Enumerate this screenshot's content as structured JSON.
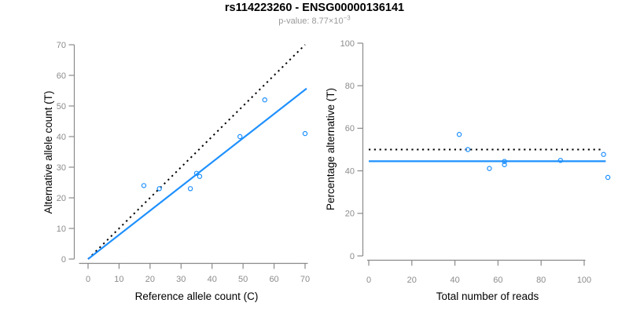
{
  "title": "rs114223260 - ENSG00000136141",
  "subtitle": {
    "base": "p-value: 8.77×10",
    "exponent": "−3"
  },
  "colors": {
    "accent_blue": "#1e90ff",
    "reference_line_black": "#000000",
    "axis_gray": "#8a8a8a",
    "tick_label_gray": "#8c8c8c",
    "axis_title_black": "#000000",
    "subtitle_gray": "#9a9a9a",
    "background": "#ffffff"
  },
  "chart_data": [
    {
      "type": "scatter",
      "panel": "left",
      "xlabel": "Reference allele count (C)",
      "ylabel": "Alternative allele count (T)",
      "xlim": [
        0,
        70
      ],
      "ylim": [
        0,
        70
      ],
      "xticks": [
        0,
        10,
        20,
        30,
        40,
        50,
        60,
        70
      ],
      "yticks": [
        0,
        10,
        20,
        30,
        40,
        50,
        60,
        70
      ],
      "grid": false,
      "legend": null,
      "points": [
        [
          18,
          24
        ],
        [
          23,
          23
        ],
        [
          33,
          23
        ],
        [
          35,
          28
        ],
        [
          36,
          27
        ],
        [
          49,
          40
        ],
        [
          57,
          52
        ],
        [
          70,
          41
        ]
      ],
      "lines": [
        {
          "name": "identity-line",
          "style": "dotted",
          "color": "#000000",
          "from": [
            0,
            0
          ],
          "to": [
            70,
            70
          ]
        },
        {
          "name": "fit-line",
          "style": "solid",
          "color": "#1e90ff",
          "from": [
            0,
            0
          ],
          "to": [
            70.5,
            55.7
          ]
        }
      ]
    },
    {
      "type": "scatter",
      "panel": "right",
      "xlabel": "Total number of reads",
      "ylabel": "Percentage alternative (T)",
      "xlim": [
        0,
        100
      ],
      "ylim": [
        0,
        100
      ],
      "xticks": [
        0,
        20,
        40,
        60,
        80,
        100
      ],
      "yticks": [
        0,
        20,
        40,
        60,
        80,
        100
      ],
      "grid": false,
      "legend": null,
      "points": [
        [
          42,
          57.1
        ],
        [
          46,
          50.0
        ],
        [
          56,
          41.1
        ],
        [
          63,
          44.4
        ],
        [
          63,
          42.9
        ],
        [
          89,
          44.9
        ],
        [
          109,
          47.7
        ],
        [
          111,
          36.9
        ]
      ],
      "lines": [
        {
          "name": "fifty-percent-line",
          "style": "dotted",
          "color": "#000000",
          "from": [
            0,
            50
          ],
          "to": [
            108.5,
            50
          ]
        },
        {
          "name": "mean-percentage-line",
          "style": "solid",
          "color": "#1e90ff",
          "from": [
            0,
            44.5
          ],
          "to": [
            110,
            44.5
          ]
        }
      ]
    }
  ]
}
